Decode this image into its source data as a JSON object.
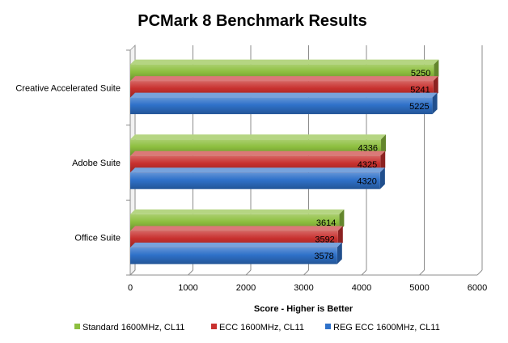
{
  "chart_data": {
    "type": "bar",
    "orientation": "horizontal",
    "title": "PCMark 8 Benchmark Results",
    "xlabel": "Score - Higher is Better",
    "ylabel": "",
    "categories": [
      "Creative Accelerated Suite",
      "Adobe Suite",
      "Office Suite"
    ],
    "series": [
      {
        "name": "Standard 1600MHz, CL11",
        "color": "#8dbf3f",
        "values": [
          5250,
          4336,
          3614
        ]
      },
      {
        "name": "ECC 1600MHz, CL11",
        "color": "#c8312f",
        "values": [
          5241,
          4325,
          3592
        ]
      },
      {
        "name": "REG ECC 1600MHz, CL11",
        "color": "#2f71c9",
        "values": [
          5225,
          4320,
          3578
        ]
      }
    ],
    "xlim": [
      0,
      6000
    ],
    "xticks": [
      0,
      1000,
      2000,
      3000,
      4000,
      5000,
      6000
    ],
    "grid": true,
    "legend": "bottom",
    "data_labels": true,
    "style": "3d-bars"
  }
}
